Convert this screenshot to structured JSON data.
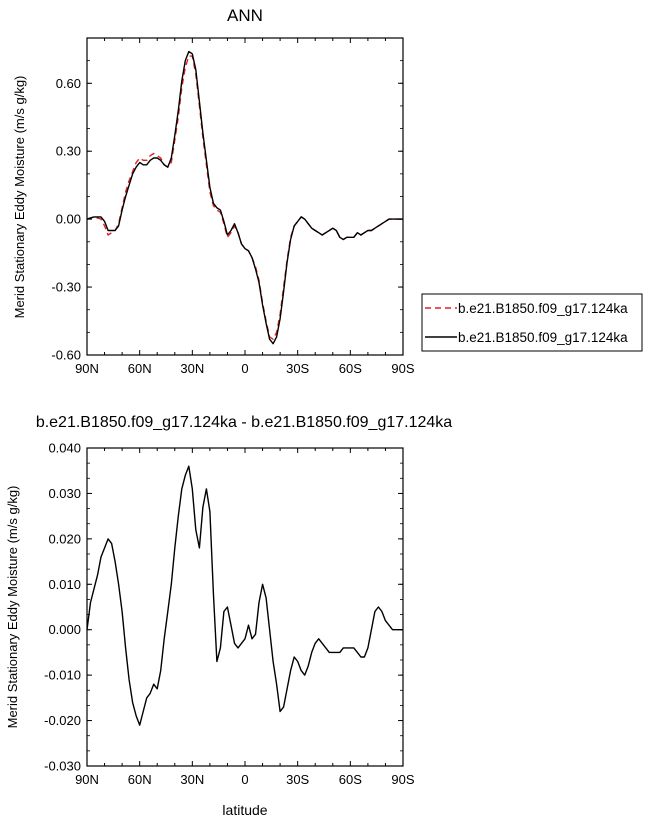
{
  "chart_data": [
    {
      "type": "line",
      "title": "ANN",
      "xlabel": "",
      "ylabel": "Merid Stationary Eddy Moisture (m/s g/kg)",
      "xlim": [
        90,
        -90
      ],
      "ylim": [
        -0.6,
        0.8
      ],
      "x_ticks": [
        90,
        60,
        30,
        0,
        -30,
        -60,
        -90
      ],
      "x_tick_labels": [
        "90N",
        "60N",
        "30N",
        "0",
        "30S",
        "60S",
        "90S"
      ],
      "y_ticks": [
        -0.6,
        -0.3,
        0.0,
        0.3,
        0.6
      ],
      "y_tick_labels": [
        "-0.60",
        "-0.30",
        "0.00",
        "0.30",
        "0.60"
      ],
      "legend_position": "right",
      "x": [
        90,
        86,
        82,
        80,
        78,
        76,
        74,
        72,
        70,
        68,
        66,
        64,
        62,
        60,
        58,
        56,
        54,
        52,
        50,
        48,
        46,
        44,
        42,
        40,
        38,
        36,
        34,
        32,
        30,
        28,
        26,
        24,
        22,
        20,
        18,
        16,
        14,
        12,
        10,
        8,
        6,
        4,
        2,
        0,
        -2,
        -4,
        -6,
        -8,
        -10,
        -12,
        -14,
        -16,
        -18,
        -20,
        -22,
        -24,
        -26,
        -28,
        -30,
        -32,
        -34,
        -36,
        -38,
        -40,
        -42,
        -44,
        -46,
        -48,
        -50,
        -52,
        -54,
        -56,
        -58,
        -60,
        -62,
        -64,
        -66,
        -68,
        -70,
        -72,
        -74,
        -76,
        -78,
        -80,
        -82,
        -84,
        -86,
        -88,
        -90
      ],
      "series": [
        {
          "name": "b.e21.B1850.f09_g17.124ka",
          "color": "#e02020",
          "dash": "dashed",
          "values": [
            0.0,
            0.01,
            0.0,
            -0.03,
            -0.07,
            -0.06,
            -0.05,
            -0.02,
            0.05,
            0.12,
            0.17,
            0.21,
            0.25,
            0.27,
            0.26,
            0.26,
            0.28,
            0.29,
            0.28,
            0.27,
            0.24,
            0.23,
            0.25,
            0.35,
            0.45,
            0.58,
            0.67,
            0.72,
            0.72,
            0.64,
            0.5,
            0.36,
            0.24,
            0.12,
            0.06,
            0.04,
            0.03,
            -0.02,
            -0.08,
            -0.06,
            -0.03,
            -0.06,
            -0.11,
            -0.13,
            -0.14,
            -0.17,
            -0.21,
            -0.27,
            -0.37,
            -0.45,
            -0.52,
            -0.53,
            -0.5,
            -0.42,
            -0.3,
            -0.18,
            -0.08,
            -0.03,
            -0.01,
            0.01,
            0.0,
            -0.02,
            -0.04,
            -0.05,
            -0.06,
            -0.07,
            -0.06,
            -0.05,
            -0.04,
            -0.05,
            -0.08,
            -0.09,
            -0.08,
            -0.08,
            -0.08,
            -0.06,
            -0.07,
            -0.06,
            -0.05,
            -0.05,
            -0.04,
            -0.03,
            -0.02,
            -0.01,
            0.0,
            0.0,
            0.0,
            0.0,
            0.0
          ]
        },
        {
          "name": "b.e21.B1850.f09_g17.124ka",
          "color": "#000000",
          "dash": "solid",
          "values": [
            0.0,
            0.01,
            0.01,
            -0.01,
            -0.05,
            -0.05,
            -0.05,
            -0.03,
            0.04,
            0.1,
            0.15,
            0.2,
            0.23,
            0.25,
            0.24,
            0.24,
            0.26,
            0.27,
            0.27,
            0.26,
            0.24,
            0.23,
            0.27,
            0.37,
            0.48,
            0.61,
            0.7,
            0.74,
            0.73,
            0.66,
            0.52,
            0.38,
            0.26,
            0.14,
            0.07,
            0.05,
            0.04,
            -0.01,
            -0.07,
            -0.05,
            -0.02,
            -0.06,
            -0.11,
            -0.13,
            -0.14,
            -0.17,
            -0.22,
            -0.28,
            -0.38,
            -0.46,
            -0.53,
            -0.55,
            -0.52,
            -0.44,
            -0.32,
            -0.19,
            -0.09,
            -0.03,
            -0.01,
            0.01,
            0.0,
            -0.02,
            -0.04,
            -0.05,
            -0.06,
            -0.07,
            -0.06,
            -0.05,
            -0.04,
            -0.05,
            -0.08,
            -0.09,
            -0.08,
            -0.08,
            -0.08,
            -0.06,
            -0.07,
            -0.06,
            -0.05,
            -0.05,
            -0.04,
            -0.03,
            -0.02,
            -0.01,
            0.0,
            0.0,
            0.0,
            0.0,
            0.0
          ]
        }
      ]
    },
    {
      "type": "line",
      "title": "b.e21.B1850.f09_g17.124ka - b.e21.B1850.f09_g17.124ka",
      "xlabel": "latitude",
      "ylabel": "Merid Stationary Eddy Moisture (m/s g/kg)",
      "xlim": [
        90,
        -90
      ],
      "ylim": [
        -0.03,
        0.04
      ],
      "x_ticks": [
        90,
        60,
        30,
        0,
        -30,
        -60,
        -90
      ],
      "x_tick_labels": [
        "90N",
        "60N",
        "30N",
        "0",
        "30S",
        "60S",
        "90S"
      ],
      "y_ticks": [
        -0.03,
        -0.02,
        -0.01,
        0.0,
        0.01,
        0.02,
        0.03,
        0.04
      ],
      "y_tick_labels": [
        "-0.030",
        "-0.020",
        "-0.010",
        "0.000",
        "0.010",
        "0.020",
        "0.030",
        "0.040"
      ],
      "series": [
        {
          "color": "#000000",
          "x": [
            90,
            88,
            86,
            84,
            82,
            80,
            78,
            76,
            74,
            72,
            70,
            68,
            66,
            64,
            62,
            60,
            58,
            56,
            54,
            52,
            50,
            48,
            46,
            44,
            42,
            40,
            38,
            36,
            34,
            32,
            30,
            28,
            26,
            24,
            22,
            20,
            18,
            16,
            14,
            12,
            10,
            8,
            6,
            4,
            2,
            0,
            -2,
            -4,
            -6,
            -8,
            -10,
            -12,
            -14,
            -16,
            -18,
            -20,
            -22,
            -24,
            -26,
            -28,
            -30,
            -32,
            -34,
            -36,
            -38,
            -40,
            -42,
            -44,
            -46,
            -48,
            -50,
            -52,
            -54,
            -56,
            -58,
            -60,
            -62,
            -64,
            -66,
            -68,
            -70,
            -72,
            -74,
            -76,
            -78,
            -80,
            -82,
            -84,
            -86,
            -88,
            -90
          ],
          "values": [
            0.0,
            0.006,
            0.009,
            0.012,
            0.016,
            0.018,
            0.02,
            0.019,
            0.015,
            0.01,
            0.004,
            -0.004,
            -0.011,
            -0.016,
            -0.019,
            -0.021,
            -0.018,
            -0.015,
            -0.014,
            -0.012,
            -0.013,
            -0.009,
            -0.002,
            0.004,
            0.01,
            0.018,
            0.025,
            0.031,
            0.034,
            0.036,
            0.031,
            0.022,
            0.018,
            0.027,
            0.031,
            0.026,
            0.008,
            -0.007,
            -0.004,
            0.004,
            0.005,
            0.001,
            -0.003,
            -0.004,
            -0.003,
            -0.002,
            0.001,
            -0.002,
            -0.001,
            0.006,
            0.01,
            0.007,
            0.0,
            -0.007,
            -0.012,
            -0.018,
            -0.017,
            -0.013,
            -0.009,
            -0.006,
            -0.007,
            -0.009,
            -0.01,
            -0.008,
            -0.005,
            -0.003,
            -0.002,
            -0.003,
            -0.004,
            -0.005,
            -0.005,
            -0.005,
            -0.005,
            -0.004,
            -0.004,
            -0.004,
            -0.004,
            -0.005,
            -0.006,
            -0.006,
            -0.004,
            0.0,
            0.004,
            0.005,
            0.004,
            0.002,
            0.001,
            0.0,
            0.0,
            0.0,
            0.0
          ]
        }
      ]
    }
  ]
}
